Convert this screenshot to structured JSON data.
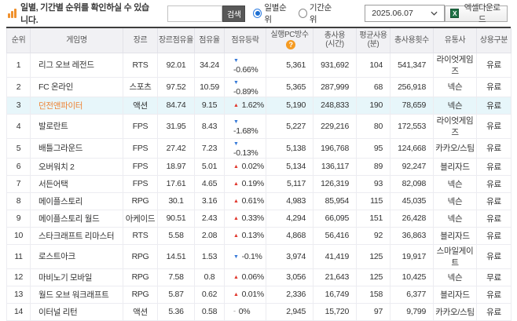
{
  "toolbar": {
    "info_text": "일별, 기간별 순위를 확인하실 수 있습니다.",
    "search_value": "",
    "search_button": "검색",
    "radio_daily": "일별순위",
    "radio_period": "기간순위",
    "date_value": "2025.06.07",
    "excel_button": "엑셀다운로드",
    "excel_icon_glyph": "X"
  },
  "colors": {
    "accent_orange": "#f0912d",
    "highlight_row_bg": "#e7f6fa",
    "highlight_name": "#ee8436",
    "up_red": "#e0352b",
    "down_blue": "#3579d8",
    "header_bg": "#f1f1f4",
    "radio_blue": "#1d6fd1",
    "excel_green": "#1e7145",
    "search_button_bg": "#585858"
  },
  "table": {
    "headers": [
      {
        "label": "순위"
      },
      {
        "label": "게임명"
      },
      {
        "label": "장르"
      },
      {
        "label": "장르점유율"
      },
      {
        "label": "점유율"
      },
      {
        "label": "점유등락"
      },
      {
        "label": "실행PC방수",
        "help": true
      },
      {
        "label": "총사용",
        "sub": "(시간)"
      },
      {
        "label": "평균사용",
        "sub": "(분)"
      },
      {
        "label": "총사용횟수"
      },
      {
        "label": "유통사"
      },
      {
        "label": "상용구분"
      }
    ],
    "rows": [
      {
        "rank": "1",
        "name": "리그 오브 레전드",
        "genre": "RTS",
        "genre_share": "92.01",
        "share": "34.24",
        "change_dir": "down",
        "change": "-0.66%",
        "pc_count": "5,361",
        "total_hours": "931,692",
        "avg_min": "104",
        "total_count": "541,347",
        "publisher": "라이엇게임즈",
        "pay": "유료",
        "highlighted": false
      },
      {
        "rank": "2",
        "name": "FC 온라인",
        "genre": "스포츠",
        "genre_share": "97.52",
        "share": "10.59",
        "change_dir": "down",
        "change": "-0.89%",
        "pc_count": "5,365",
        "total_hours": "287,999",
        "avg_min": "68",
        "total_count": "256,918",
        "publisher": "넥슨",
        "pay": "유료",
        "highlighted": false
      },
      {
        "rank": "3",
        "name": "던전앤파이터",
        "genre": "액션",
        "genre_share": "84.74",
        "share": "9.15",
        "change_dir": "up",
        "change": "1.62%",
        "pc_count": "5,190",
        "total_hours": "248,833",
        "avg_min": "190",
        "total_count": "78,659",
        "publisher": "넥슨",
        "pay": "유료",
        "highlighted": true
      },
      {
        "rank": "4",
        "name": "발로란트",
        "genre": "FPS",
        "genre_share": "31.95",
        "share": "8.43",
        "change_dir": "down",
        "change": "-1.68%",
        "pc_count": "5,227",
        "total_hours": "229,216",
        "avg_min": "80",
        "total_count": "172,553",
        "publisher": "라이엇게임즈",
        "pay": "유료",
        "highlighted": false
      },
      {
        "rank": "5",
        "name": "배틀그라운드",
        "genre": "FPS",
        "genre_share": "27.42",
        "share": "7.23",
        "change_dir": "down",
        "change": "-0.13%",
        "pc_count": "5,138",
        "total_hours": "196,768",
        "avg_min": "95",
        "total_count": "124,668",
        "publisher": "카카오/스팀",
        "pay": "유료",
        "highlighted": false
      },
      {
        "rank": "6",
        "name": "오버워치 2",
        "genre": "FPS",
        "genre_share": "18.97",
        "share": "5.01",
        "change_dir": "up",
        "change": "0.02%",
        "pc_count": "5,134",
        "total_hours": "136,117",
        "avg_min": "89",
        "total_count": "92,247",
        "publisher": "블리자드",
        "pay": "유료",
        "highlighted": false
      },
      {
        "rank": "7",
        "name": "서든어택",
        "genre": "FPS",
        "genre_share": "17.61",
        "share": "4.65",
        "change_dir": "up",
        "change": "0.19%",
        "pc_count": "5,117",
        "total_hours": "126,319",
        "avg_min": "93",
        "total_count": "82,098",
        "publisher": "넥슨",
        "pay": "유료",
        "highlighted": false
      },
      {
        "rank": "8",
        "name": "메이플스토리",
        "genre": "RPG",
        "genre_share": "30.1",
        "share": "3.16",
        "change_dir": "up",
        "change": "0.61%",
        "pc_count": "4,983",
        "total_hours": "85,954",
        "avg_min": "115",
        "total_count": "45,035",
        "publisher": "넥슨",
        "pay": "유료",
        "highlighted": false
      },
      {
        "rank": "9",
        "name": "메이플스토리 월드",
        "genre": "아케이드",
        "genre_share": "90.51",
        "share": "2.43",
        "change_dir": "up",
        "change": "0.33%",
        "pc_count": "4,294",
        "total_hours": "66,095",
        "avg_min": "151",
        "total_count": "26,428",
        "publisher": "넥슨",
        "pay": "유료",
        "highlighted": false
      },
      {
        "rank": "10",
        "name": "스타크래프트 리마스터",
        "genre": "RTS",
        "genre_share": "5.58",
        "share": "2.08",
        "change_dir": "up",
        "change": "0.13%",
        "pc_count": "4,868",
        "total_hours": "56,416",
        "avg_min": "92",
        "total_count": "36,863",
        "publisher": "블리자드",
        "pay": "유료",
        "highlighted": false
      },
      {
        "rank": "11",
        "name": "로스트아크",
        "genre": "RPG",
        "genre_share": "14.51",
        "share": "1.53",
        "change_dir": "down",
        "change": "-0.1%",
        "pc_count": "3,974",
        "total_hours": "41,419",
        "avg_min": "125",
        "total_count": "19,917",
        "publisher": "스마일게이트",
        "pay": "유료",
        "highlighted": false
      },
      {
        "rank": "12",
        "name": "마비노기 모바일",
        "genre": "RPG",
        "genre_share": "7.58",
        "share": "0.8",
        "change_dir": "up",
        "change": "0.06%",
        "pc_count": "3,056",
        "total_hours": "21,643",
        "avg_min": "125",
        "total_count": "10,425",
        "publisher": "넥슨",
        "pay": "무료",
        "highlighted": false
      },
      {
        "rank": "13",
        "name": "월드 오브 워크래프트",
        "genre": "RPG",
        "genre_share": "5.87",
        "share": "0.62",
        "change_dir": "up",
        "change": "0.01%",
        "pc_count": "2,336",
        "total_hours": "16,749",
        "avg_min": "158",
        "total_count": "6,377",
        "publisher": "블리자드",
        "pay": "유료",
        "highlighted": false
      },
      {
        "rank": "14",
        "name": "이터널 리턴",
        "genre": "액션",
        "genre_share": "5.36",
        "share": "0.58",
        "change_dir": "flat",
        "change": "0%",
        "pc_count": "2,945",
        "total_hours": "15,720",
        "avg_min": "97",
        "total_count": "9,799",
        "publisher": "카카오/스팀",
        "pay": "유료",
        "highlighted": false
      }
    ]
  }
}
